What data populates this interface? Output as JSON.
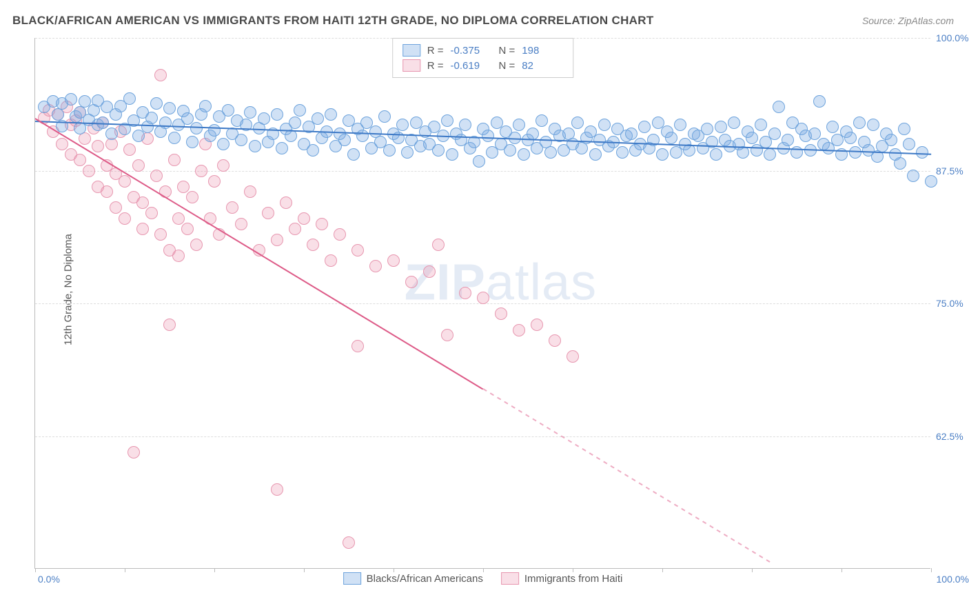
{
  "title": "BLACK/AFRICAN AMERICAN VS IMMIGRANTS FROM HAITI 12TH GRADE, NO DIPLOMA CORRELATION CHART",
  "source_label": "Source: ZipAtlas.com",
  "ylabel": "12th Grade, No Diploma",
  "watermark_bold": "ZIP",
  "watermark_light": "atlas",
  "chart": {
    "type": "scatter",
    "xlim": [
      0,
      100
    ],
    "ylim": [
      50,
      100
    ],
    "yticks": [
      62.5,
      75.0,
      87.5,
      100.0
    ],
    "ytick_labels": [
      "62.5%",
      "75.0%",
      "87.5%",
      "100.0%"
    ],
    "xtick_marks": [
      0,
      10,
      20,
      30,
      40,
      50,
      60,
      70,
      80,
      90,
      100
    ],
    "xtick_zero": "0.0%",
    "xtick_hundred": "100.0%",
    "background_color": "#ffffff",
    "grid_color": "#dddddd",
    "axis_color": "#bbbbbb",
    "marker_radius": 9,
    "marker_stroke_width": 1.5,
    "trend_line_width": 2
  },
  "series": {
    "blue": {
      "label": "Blacks/African Americans",
      "fill": "rgba(120,170,225,0.35)",
      "stroke": "#6da3dc",
      "line_color": "#3d79c6",
      "R": "-0.375",
      "N": "198",
      "trend": {
        "x1": 0,
        "y1": 92.2,
        "x2": 100,
        "y2": 89.1
      },
      "points": [
        [
          1,
          93.5
        ],
        [
          2,
          94.0
        ],
        [
          2.5,
          92.8
        ],
        [
          3,
          93.8
        ],
        [
          3,
          91.7
        ],
        [
          4,
          94.2
        ],
        [
          4.5,
          92.6
        ],
        [
          5,
          93.0
        ],
        [
          5,
          91.5
        ],
        [
          5.5,
          94.0
        ],
        [
          6,
          92.3
        ],
        [
          6.5,
          93.2
        ],
        [
          7,
          91.8
        ],
        [
          7,
          94.1
        ],
        [
          7.5,
          92.0
        ],
        [
          8,
          93.5
        ],
        [
          8.5,
          91.0
        ],
        [
          9,
          92.8
        ],
        [
          9.5,
          93.6
        ],
        [
          10,
          91.4
        ],
        [
          10.5,
          94.3
        ],
        [
          11,
          92.2
        ],
        [
          11.5,
          90.8
        ],
        [
          12,
          93.0
        ],
        [
          12.5,
          91.6
        ],
        [
          13,
          92.5
        ],
        [
          13.5,
          93.8
        ],
        [
          14,
          91.2
        ],
        [
          14.5,
          92.0
        ],
        [
          15,
          93.4
        ],
        [
          15.5,
          90.6
        ],
        [
          16,
          91.8
        ],
        [
          16.5,
          93.1
        ],
        [
          17,
          92.4
        ],
        [
          17.5,
          90.2
        ],
        [
          18,
          91.5
        ],
        [
          18.5,
          92.8
        ],
        [
          19,
          93.6
        ],
        [
          19.5,
          90.8
        ],
        [
          20,
          91.3
        ],
        [
          20.5,
          92.6
        ],
        [
          21,
          90.0
        ],
        [
          21.5,
          93.2
        ],
        [
          22,
          91.0
        ],
        [
          22.5,
          92.2
        ],
        [
          23,
          90.4
        ],
        [
          23.5,
          91.8
        ],
        [
          24,
          93.0
        ],
        [
          24.5,
          89.8
        ],
        [
          25,
          91.5
        ],
        [
          25.5,
          92.4
        ],
        [
          26,
          90.2
        ],
        [
          26.5,
          91.0
        ],
        [
          27,
          92.8
        ],
        [
          27.5,
          89.6
        ],
        [
          28,
          91.4
        ],
        [
          28.5,
          90.8
        ],
        [
          29,
          92.0
        ],
        [
          29.5,
          93.2
        ],
        [
          30,
          90.0
        ],
        [
          30.5,
          91.6
        ],
        [
          31,
          89.4
        ],
        [
          31.5,
          92.4
        ],
        [
          32,
          90.6
        ],
        [
          32.5,
          91.2
        ],
        [
          33,
          92.8
        ],
        [
          33.5,
          89.8
        ],
        [
          34,
          91.0
        ],
        [
          34.5,
          90.4
        ],
        [
          35,
          92.2
        ],
        [
          35.5,
          89.0
        ],
        [
          36,
          91.4
        ],
        [
          36.5,
          90.8
        ],
        [
          37,
          92.0
        ],
        [
          37.5,
          89.6
        ],
        [
          38,
          91.2
        ],
        [
          38.5,
          90.2
        ],
        [
          39,
          92.6
        ],
        [
          39.5,
          89.4
        ],
        [
          40,
          91.0
        ],
        [
          40.5,
          90.6
        ],
        [
          41,
          91.8
        ],
        [
          41.5,
          89.2
        ],
        [
          42,
          90.4
        ],
        [
          42.5,
          92.0
        ],
        [
          43,
          89.8
        ],
        [
          43.5,
          91.2
        ],
        [
          44,
          90.0
        ],
        [
          44.5,
          91.6
        ],
        [
          45,
          89.4
        ],
        [
          45.5,
          90.8
        ],
        [
          46,
          92.2
        ],
        [
          46.5,
          89.0
        ],
        [
          47,
          91.0
        ],
        [
          47.5,
          90.4
        ],
        [
          48,
          91.8
        ],
        [
          48.5,
          89.6
        ],
        [
          49,
          90.2
        ],
        [
          49.5,
          88.4
        ],
        [
          50,
          91.4
        ],
        [
          50.5,
          90.8
        ],
        [
          51,
          89.2
        ],
        [
          51.5,
          92.0
        ],
        [
          52,
          90.0
        ],
        [
          52.5,
          91.2
        ],
        [
          53,
          89.4
        ],
        [
          53.5,
          90.6
        ],
        [
          54,
          91.8
        ],
        [
          54.5,
          89.0
        ],
        [
          55,
          90.4
        ],
        [
          55.5,
          91.0
        ],
        [
          56,
          89.6
        ],
        [
          56.5,
          92.2
        ],
        [
          57,
          90.2
        ],
        [
          57.5,
          89.2
        ],
        [
          58,
          91.4
        ],
        [
          58.5,
          90.8
        ],
        [
          59,
          89.4
        ],
        [
          59.5,
          91.0
        ],
        [
          60,
          90.0
        ],
        [
          60.5,
          92.0
        ],
        [
          61,
          89.6
        ],
        [
          61.5,
          90.6
        ],
        [
          62,
          91.2
        ],
        [
          62.5,
          89.0
        ],
        [
          63,
          90.4
        ],
        [
          63.5,
          91.8
        ],
        [
          64,
          89.8
        ],
        [
          64.5,
          90.2
        ],
        [
          65,
          91.4
        ],
        [
          65.5,
          89.2
        ],
        [
          66,
          90.8
        ],
        [
          66.5,
          91.0
        ],
        [
          67,
          89.4
        ],
        [
          67.5,
          90.0
        ],
        [
          68,
          91.6
        ],
        [
          68.5,
          89.6
        ],
        [
          69,
          90.4
        ],
        [
          69.5,
          92.0
        ],
        [
          70,
          89.0
        ],
        [
          70.5,
          91.2
        ],
        [
          71,
          90.6
        ],
        [
          71.5,
          89.2
        ],
        [
          72,
          91.8
        ],
        [
          72.5,
          90.0
        ],
        [
          73,
          89.4
        ],
        [
          73.5,
          91.0
        ],
        [
          74,
          90.8
        ],
        [
          74.5,
          89.6
        ],
        [
          75,
          91.4
        ],
        [
          75.5,
          90.2
        ],
        [
          76,
          89.0
        ],
        [
          76.5,
          91.6
        ],
        [
          77,
          90.4
        ],
        [
          77.5,
          89.8
        ],
        [
          78,
          92.0
        ],
        [
          78.5,
          90.0
        ],
        [
          79,
          89.2
        ],
        [
          79.5,
          91.2
        ],
        [
          80,
          90.6
        ],
        [
          80.5,
          89.4
        ],
        [
          81,
          91.8
        ],
        [
          81.5,
          90.2
        ],
        [
          82,
          89.0
        ],
        [
          82.5,
          91.0
        ],
        [
          83,
          93.5
        ],
        [
          83.5,
          89.6
        ],
        [
          84,
          90.4
        ],
        [
          84.5,
          92.0
        ],
        [
          85,
          89.2
        ],
        [
          85.5,
          91.4
        ],
        [
          86,
          90.8
        ],
        [
          86.5,
          89.4
        ],
        [
          87,
          91.0
        ],
        [
          87.5,
          94.0
        ],
        [
          88,
          90.0
        ],
        [
          88.5,
          89.6
        ],
        [
          89,
          91.6
        ],
        [
          89.5,
          90.4
        ],
        [
          90,
          89.0
        ],
        [
          90.5,
          91.2
        ],
        [
          91,
          90.6
        ],
        [
          91.5,
          89.2
        ],
        [
          92,
          92.0
        ],
        [
          92.5,
          90.2
        ],
        [
          93,
          89.4
        ],
        [
          93.5,
          91.8
        ],
        [
          94,
          88.8
        ],
        [
          94.5,
          89.8
        ],
        [
          95,
          91.0
        ],
        [
          95.5,
          90.4
        ],
        [
          96,
          89.0
        ],
        [
          96.5,
          88.2
        ],
        [
          97,
          91.4
        ],
        [
          97.5,
          90.0
        ],
        [
          98,
          87.0
        ],
        [
          99,
          89.2
        ],
        [
          100,
          86.5
        ]
      ]
    },
    "pink": {
      "label": "Immigrants from Haiti",
      "fill": "rgba(235,150,175,0.30)",
      "stroke": "#e796af",
      "line_color": "#dd5a87",
      "R": "-0.619",
      "N": "82",
      "trend": {
        "x1": 0,
        "y1": 92.5,
        "x2": 50,
        "y2": 67.0
      },
      "trend_dash": {
        "x1": 50,
        "y1": 67.0,
        "x2": 82,
        "y2": 50.7
      },
      "points": [
        [
          1,
          92.5
        ],
        [
          1.5,
          93.2
        ],
        [
          2,
          91.2
        ],
        [
          2.5,
          92.8
        ],
        [
          3,
          90.0
        ],
        [
          3.5,
          93.5
        ],
        [
          4,
          91.8
        ],
        [
          4,
          89.0
        ],
        [
          4.5,
          92.2
        ],
        [
          5,
          88.5
        ],
        [
          5,
          93.0
        ],
        [
          5.5,
          90.5
        ],
        [
          6,
          87.5
        ],
        [
          6.5,
          91.5
        ],
        [
          7,
          89.8
        ],
        [
          7,
          86.0
        ],
        [
          7.5,
          92.0
        ],
        [
          8,
          88.0
        ],
        [
          8,
          85.5
        ],
        [
          8.5,
          90.0
        ],
        [
          9,
          87.2
        ],
        [
          9,
          84.0
        ],
        [
          9.5,
          91.2
        ],
        [
          10,
          86.5
        ],
        [
          10,
          83.0
        ],
        [
          10.5,
          89.5
        ],
        [
          11,
          85.0
        ],
        [
          11,
          61.0
        ],
        [
          11.5,
          88.0
        ],
        [
          12,
          84.5
        ],
        [
          12,
          82.0
        ],
        [
          12.5,
          90.5
        ],
        [
          13,
          83.5
        ],
        [
          13.5,
          87.0
        ],
        [
          14,
          81.5
        ],
        [
          14,
          96.5
        ],
        [
          14.5,
          85.5
        ],
        [
          15,
          80.0
        ],
        [
          15,
          73.0
        ],
        [
          15.5,
          88.5
        ],
        [
          16,
          83.0
        ],
        [
          16,
          79.5
        ],
        [
          16.5,
          86.0
        ],
        [
          17,
          82.0
        ],
        [
          17.5,
          85.0
        ],
        [
          18,
          80.5
        ],
        [
          18.5,
          87.5
        ],
        [
          19,
          90.0
        ],
        [
          19.5,
          83.0
        ],
        [
          20,
          86.5
        ],
        [
          20.5,
          81.5
        ],
        [
          21,
          88.0
        ],
        [
          22,
          84.0
        ],
        [
          23,
          82.5
        ],
        [
          24,
          85.5
        ],
        [
          25,
          80.0
        ],
        [
          26,
          83.5
        ],
        [
          27,
          81.0
        ],
        [
          27,
          57.5
        ],
        [
          28,
          84.5
        ],
        [
          29,
          82.0
        ],
        [
          30,
          83.0
        ],
        [
          31,
          80.5
        ],
        [
          32,
          82.5
        ],
        [
          33,
          79.0
        ],
        [
          34,
          81.5
        ],
        [
          35,
          52.5
        ],
        [
          36,
          80.0
        ],
        [
          36,
          71.0
        ],
        [
          38,
          78.5
        ],
        [
          40,
          79.0
        ],
        [
          42,
          77.0
        ],
        [
          44,
          78.0
        ],
        [
          45,
          80.5
        ],
        [
          46,
          72.0
        ],
        [
          48,
          76.0
        ],
        [
          50,
          75.5
        ],
        [
          52,
          74.0
        ],
        [
          54,
          72.5
        ],
        [
          56,
          73.0
        ],
        [
          58,
          71.5
        ],
        [
          60,
          70.0
        ]
      ]
    }
  }
}
